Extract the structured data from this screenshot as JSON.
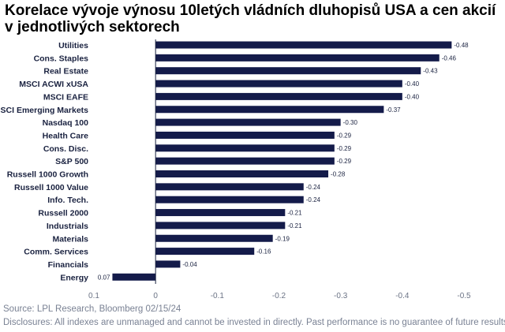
{
  "chart_data": {
    "type": "bar",
    "orientation": "horizontal",
    "title": "Korelace vývoje výnosu 10letých vládních dluhopisů USA a cen akcií v jednotlivých sektorech",
    "categories": [
      "Utilities",
      "Cons. Staples",
      "Real Estate",
      "MSCI ACWI xUSA",
      "MSCI EAFE",
      "MSCI Emerging Markets",
      "Nasdaq 100",
      "Health Care",
      "Cons. Disc.",
      "S&P 500",
      "Russell 1000 Growth",
      "Russell 1000 Value",
      "Info. Tech.",
      "Russell 2000",
      "Industrials",
      "Materials",
      "Comm. Services",
      "Financials",
      "Energy"
    ],
    "values": [
      -0.48,
      -0.46,
      -0.43,
      -0.4,
      -0.4,
      -0.37,
      -0.3,
      -0.29,
      -0.29,
      -0.29,
      -0.28,
      -0.24,
      -0.24,
      -0.21,
      -0.21,
      -0.19,
      -0.16,
      -0.04,
      0.07
    ],
    "value_labels": [
      "-0.48",
      "-0.46",
      "-0.43",
      "-0.40",
      "-0.40",
      "-0.37",
      "-0.30",
      "-0.29",
      "-0.29",
      "-0.29",
      "-0.28",
      "-0.24",
      "-0.24",
      "-0.21",
      "-0.21",
      "-0.19",
      "-0.16",
      "-0.04",
      "0.07"
    ],
    "xlim": [
      0.1,
      -0.5
    ],
    "xticks": [
      0.1,
      0,
      -0.1,
      -0.2,
      -0.3,
      -0.4,
      -0.5
    ],
    "xtick_labels": [
      "0.1",
      "0",
      "-0.1",
      "-0.2",
      "-0.3",
      "-0.4",
      "-0.5"
    ],
    "xlabel": "",
    "ylabel": "",
    "bar_color": "#141b4a",
    "grid": false
  },
  "footer": {
    "source": "Source: LPL Research, Bloomberg 02/15/24",
    "disclosure": "Disclosures: All indexes are unmanaged and cannot be invested in directly. Past performance is no guarantee of future results."
  }
}
